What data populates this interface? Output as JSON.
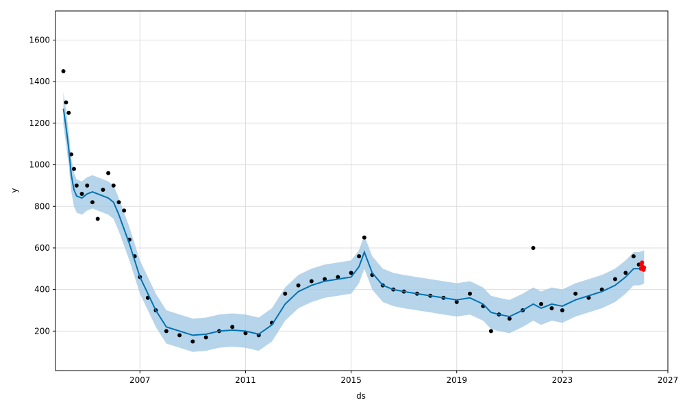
{
  "chart_data": {
    "type": "scatter",
    "title": "",
    "xlabel": "ds",
    "ylabel": "y",
    "xlim": [
      2003.8,
      2027.0
    ],
    "ylim": [
      10,
      1740
    ],
    "grid": true,
    "legend": "none",
    "x_ticks": [
      "2007",
      "2011",
      "2015",
      "2019",
      "2023",
      "2027"
    ],
    "y_ticks": [
      "200",
      "400",
      "600",
      "800",
      "1000",
      "1200",
      "1400",
      "1600"
    ],
    "colors": {
      "observations": "#000000",
      "forecast_line": "#0072B2",
      "uncertainty_band": "#9ec5e3",
      "recent_points": "#ff0000"
    },
    "series": [
      {
        "kind": "observed",
        "x": [
          2004.1,
          2004.2,
          2004.3,
          2004.4,
          2004.5,
          2004.6,
          2004.8,
          2005.0,
          2005.2,
          2005.4,
          2005.6,
          2005.8,
          2006.0,
          2006.2,
          2006.4,
          2006.6,
          2006.8,
          2007.0,
          2007.3,
          2007.6,
          2008.0,
          2008.5,
          2009.0,
          2009.5,
          2010.0,
          2010.5,
          2011.0,
          2011.5,
          2012.0,
          2012.5,
          2013.0,
          2013.5,
          2014.0,
          2014.5,
          2015.0,
          2015.3,
          2015.5,
          2015.8,
          2016.2,
          2016.6,
          2017.0,
          2017.5,
          2018.0,
          2018.5,
          2019.0,
          2019.5,
          2020.0,
          2020.3,
          2020.6,
          2021.0,
          2021.5,
          2021.9,
          2022.2,
          2022.6,
          2023.0,
          2023.5,
          2024.0,
          2024.5,
          2025.0,
          2025.4,
          2025.7,
          2025.9
        ],
        "y": [
          1450,
          1300,
          1250,
          1050,
          980,
          900,
          860,
          900,
          820,
          740,
          880,
          960,
          900,
          820,
          780,
          640,
          560,
          460,
          360,
          300,
          200,
          180,
          150,
          170,
          200,
          220,
          190,
          180,
          240,
          380,
          420,
          440,
          450,
          460,
          480,
          560,
          650,
          470,
          420,
          400,
          390,
          380,
          370,
          360,
          340,
          380,
          320,
          200,
          280,
          260,
          300,
          600,
          330,
          310,
          300,
          380,
          360,
          400,
          450,
          480,
          560,
          520
        ]
      },
      {
        "kind": "forecast",
        "x": [
          2004.1,
          2004.2,
          2004.3,
          2004.4,
          2004.5,
          2004.6,
          2004.8,
          2005.0,
          2005.2,
          2005.4,
          2005.6,
          2005.8,
          2006.0,
          2006.2,
          2006.4,
          2006.6,
          2006.8,
          2007.0,
          2007.3,
          2007.6,
          2008.0,
          2008.5,
          2009.0,
          2009.5,
          2010.0,
          2010.5,
          2011.0,
          2011.5,
          2012.0,
          2012.5,
          2013.0,
          2013.5,
          2014.0,
          2014.5,
          2015.0,
          2015.3,
          2015.5,
          2015.8,
          2016.2,
          2016.6,
          2017.0,
          2017.5,
          2018.0,
          2018.5,
          2019.0,
          2019.5,
          2020.0,
          2020.3,
          2020.6,
          2021.0,
          2021.5,
          2021.9,
          2022.2,
          2022.6,
          2023.0,
          2023.5,
          2024.0,
          2024.5,
          2025.0,
          2025.4,
          2025.7,
          2025.9,
          2026.05,
          2026.1
        ],
        "y": [
          1270,
          1180,
          1080,
          950,
          880,
          850,
          840,
          860,
          870,
          860,
          850,
          840,
          820,
          760,
          690,
          620,
          540,
          460,
          380,
          300,
          220,
          200,
          180,
          185,
          200,
          205,
          200,
          185,
          230,
          330,
          390,
          420,
          440,
          450,
          460,
          510,
          580,
          480,
          420,
          400,
          390,
          380,
          370,
          360,
          350,
          360,
          330,
          290,
          280,
          270,
          300,
          330,
          310,
          330,
          320,
          350,
          370,
          390,
          420,
          460,
          500,
          500,
          505,
          510
        ],
        "band_width": 80
      },
      {
        "kind": "recent",
        "x": [
          2025.98,
          2026.0,
          2026.02,
          2026.04,
          2026.06,
          2026.08,
          2026.1
        ],
        "y": [
          500,
          520,
          530,
          510,
          500,
          495,
          505
        ]
      }
    ]
  }
}
